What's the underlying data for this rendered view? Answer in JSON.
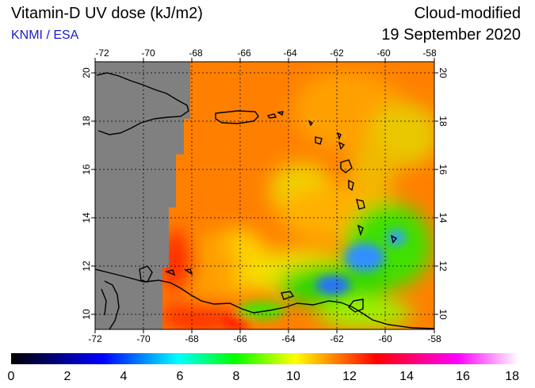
{
  "header": {
    "title": "Vitamin-D UV dose (kJ/m2)",
    "subtitle": "KNMI / ESA",
    "mode": "Cloud-modified",
    "date": "19 September 2020"
  },
  "map": {
    "lon_range": [
      -72,
      -58
    ],
    "lat_range": [
      9.5,
      20.5
    ],
    "lon_ticks": [
      "-72",
      "-70",
      "-68",
      "-66",
      "-64",
      "-62",
      "-60",
      "-58"
    ],
    "lat_ticks": [
      "10",
      "12",
      "14",
      "16",
      "18",
      "20"
    ],
    "nodata_color": "#808080"
  },
  "colorbar": {
    "min": 0,
    "max": 18,
    "ticks": [
      "0",
      "2",
      "4",
      "6",
      "8",
      "10",
      "12",
      "14",
      "16",
      "18"
    ],
    "colors": [
      "#000000",
      "#0000ff",
      "#00ffff",
      "#00ff00",
      "#ffff00",
      "#ff0000",
      "#ff00ff",
      "#ffffff"
    ]
  }
}
